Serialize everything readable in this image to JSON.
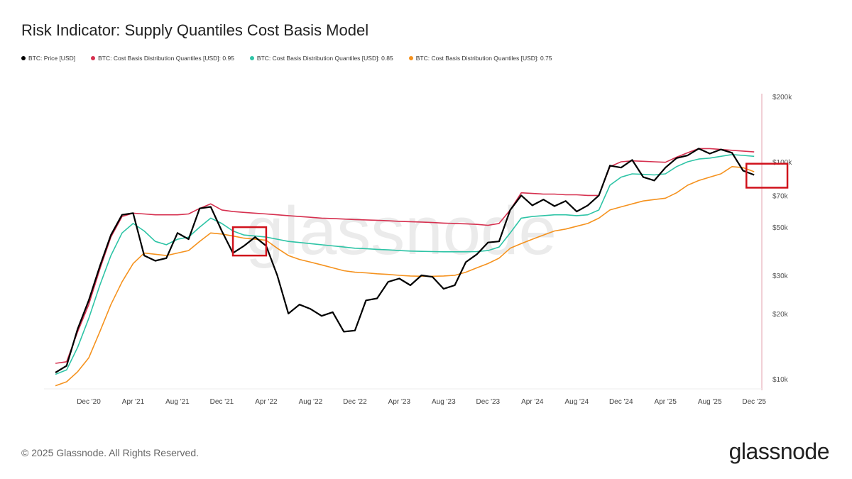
{
  "title": "Risk Indicator: Supply Quantiles Cost Basis Model",
  "footer": "© 2025 Glassnode. All Rights Reserved.",
  "logo": "glassnode",
  "watermark": "glassnode",
  "chart_data": {
    "type": "line",
    "yscale": "log",
    "ylim": [
      9000,
      200000
    ],
    "xlim": [
      "2020-08",
      "2025-12"
    ],
    "y_ticks": [
      10000,
      20000,
      30000,
      50000,
      70000,
      100000,
      200000
    ],
    "y_tick_labels": [
      "$10k",
      "$20k",
      "$30k",
      "$50k",
      "$70k",
      "$100k",
      "$200k"
    ],
    "x_ticks": [
      "2020-12",
      "2021-04",
      "2021-08",
      "2021-12",
      "2022-04",
      "2022-08",
      "2022-12",
      "2023-04",
      "2023-08",
      "2023-12",
      "2024-04",
      "2024-08",
      "2024-12",
      "2025-04",
      "2025-08",
      "2025-12"
    ],
    "x_tick_labels": [
      "Dec '20",
      "Apr '21",
      "Aug '21",
      "Dec '21",
      "Apr '22",
      "Aug '22",
      "Dec '22",
      "Apr '23",
      "Aug '23",
      "Dec '23",
      "Apr '24",
      "Aug '24",
      "Dec '24",
      "Apr '25",
      "Aug '25",
      "Dec '25"
    ],
    "grid": false,
    "legend_position": "top-left",
    "x": [
      "2020-09",
      "2020-10",
      "2020-11",
      "2020-12",
      "2021-01",
      "2021-02",
      "2021-03",
      "2021-04",
      "2021-05",
      "2021-06",
      "2021-07",
      "2021-08",
      "2021-09",
      "2021-10",
      "2021-11",
      "2021-12",
      "2022-01",
      "2022-02",
      "2022-03",
      "2022-04",
      "2022-05",
      "2022-06",
      "2022-07",
      "2022-08",
      "2022-09",
      "2022-10",
      "2022-11",
      "2022-12",
      "2023-01",
      "2023-02",
      "2023-03",
      "2023-04",
      "2023-05",
      "2023-06",
      "2023-07",
      "2023-08",
      "2023-09",
      "2023-10",
      "2023-11",
      "2023-12",
      "2024-01",
      "2024-02",
      "2024-03",
      "2024-04",
      "2024-05",
      "2024-06",
      "2024-07",
      "2024-08",
      "2024-09",
      "2024-10",
      "2024-11",
      "2024-12",
      "2025-01",
      "2025-02",
      "2025-03",
      "2025-04",
      "2025-05",
      "2025-06",
      "2025-07",
      "2025-08",
      "2025-09",
      "2025-10",
      "2025-11",
      "2025-12"
    ],
    "series": [
      {
        "name": "BTC: Price [USD]",
        "color": "#000000",
        "values": [
          10700,
          11500,
          17000,
          23000,
          33000,
          46000,
          57000,
          58000,
          37000,
          35000,
          36000,
          47000,
          44000,
          61000,
          62000,
          48000,
          38000,
          41000,
          45000,
          41000,
          30000,
          20000,
          22000,
          21000,
          19500,
          20300,
          16500,
          16700,
          23000,
          23500,
          28000,
          29000,
          27000,
          30000,
          29500,
          26000,
          27000,
          34500,
          37500,
          42500,
          43000,
          60000,
          70000,
          63000,
          67000,
          62500,
          66000,
          59000,
          63000,
          70000,
          96000,
          94000,
          102000,
          85000,
          82000,
          94000,
          104000,
          107000,
          115000,
          109000,
          114000,
          110000,
          91000,
          87000
        ]
      },
      {
        "name": "BTC: Cost Basis Distribution Quantiles [USD]: 0.95",
        "color": "#d6304f",
        "values": [
          11800,
          12000,
          16500,
          22000,
          32000,
          45000,
          56000,
          58000,
          57500,
          57000,
          57000,
          57000,
          57500,
          61000,
          64000,
          60000,
          59000,
          58500,
          58000,
          57500,
          57000,
          56500,
          56000,
          55500,
          55000,
          54800,
          54500,
          54200,
          54000,
          53800,
          53500,
          53200,
          53000,
          52800,
          52500,
          52200,
          52000,
          51800,
          51500,
          51000,
          52000,
          60000,
          72000,
          71500,
          71000,
          71000,
          70500,
          70500,
          70000,
          70000,
          95000,
          100000,
          101000,
          100500,
          100000,
          99500,
          105000,
          110000,
          115000,
          115000,
          114000,
          113000,
          112000,
          111000
        ]
      },
      {
        "name": "BTC: Cost Basis Distribution Quantiles [USD]: 0.85",
        "color": "#2ec4a6",
        "values": [
          10500,
          11000,
          14000,
          19000,
          27000,
          37000,
          47000,
          52000,
          48000,
          43000,
          41500,
          44000,
          45000,
          50000,
          55000,
          52000,
          48000,
          46000,
          45500,
          45000,
          44000,
          43000,
          42500,
          42000,
          41500,
          41000,
          40500,
          40000,
          39800,
          39500,
          39300,
          39000,
          38800,
          38700,
          38600,
          38500,
          38500,
          38500,
          38600,
          39000,
          40500,
          47000,
          55000,
          56000,
          56500,
          57000,
          57000,
          56500,
          57000,
          60000,
          78000,
          85000,
          88000,
          87500,
          87000,
          88000,
          95000,
          100000,
          103000,
          104000,
          106000,
          108000,
          107000,
          106000
        ]
      },
      {
        "name": "BTC: Cost Basis Distribution Quantiles [USD]: 0.75",
        "color": "#f5921e",
        "values": [
          9300,
          9700,
          10800,
          12500,
          16500,
          22000,
          28000,
          34000,
          38000,
          37500,
          37000,
          38000,
          39000,
          43000,
          47000,
          46500,
          45500,
          44500,
          44000,
          43500,
          40000,
          37000,
          35500,
          34500,
          33500,
          32500,
          31500,
          31000,
          30800,
          30500,
          30300,
          30000,
          29800,
          29700,
          29700,
          29800,
          30000,
          31000,
          32500,
          34000,
          36000,
          40000,
          42000,
          44000,
          46000,
          48000,
          49000,
          50500,
          52000,
          55000,
          60000,
          62000,
          64000,
          66000,
          67000,
          68000,
          72000,
          78000,
          82000,
          85000,
          88000,
          95000,
          94000,
          90000
        ]
      }
    ],
    "annotations": [
      {
        "type": "box",
        "color": "#d0111b",
        "x": [
          "2022-01",
          "2022-04"
        ],
        "y": [
          37000,
          50000
        ]
      },
      {
        "type": "box",
        "color": "#d0111b",
        "x": [
          "2025-11-10",
          "2026-03"
        ],
        "y": [
          76000,
          98000
        ]
      }
    ]
  }
}
